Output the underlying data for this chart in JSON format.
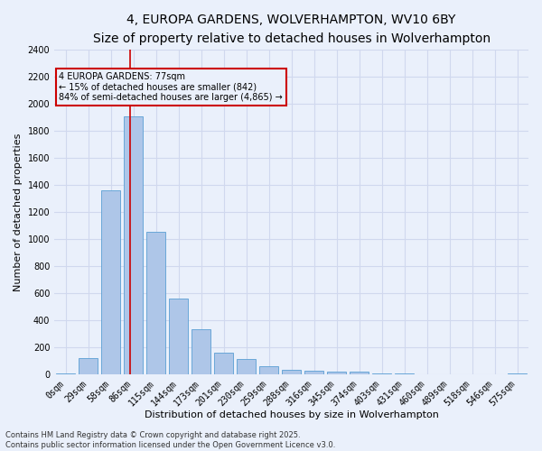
{
  "title1": "4, EUROPA GARDENS, WOLVERHAMPTON, WV10 6BY",
  "title2": "Size of property relative to detached houses in Wolverhampton",
  "xlabel": "Distribution of detached houses by size in Wolverhampton",
  "ylabel": "Number of detached properties",
  "bin_labels": [
    "0sqm",
    "29sqm",
    "58sqm",
    "86sqm",
    "115sqm",
    "144sqm",
    "173sqm",
    "201sqm",
    "230sqm",
    "259sqm",
    "288sqm",
    "316sqm",
    "345sqm",
    "374sqm",
    "403sqm",
    "431sqm",
    "460sqm",
    "489sqm",
    "518sqm",
    "546sqm",
    "575sqm"
  ],
  "bar_values": [
    10,
    120,
    1360,
    1910,
    1055,
    560,
    335,
    165,
    115,
    60,
    35,
    30,
    25,
    20,
    10,
    8,
    5,
    5,
    5,
    3,
    10
  ],
  "bar_color": "#aec6e8",
  "bar_edge_color": "#5a9fd4",
  "bg_color": "#eaf0fb",
  "grid_color": "#d0d8ee",
  "vline_x": 2.85,
  "vline_color": "#cc0000",
  "annotation_text": "4 EUROPA GARDENS: 77sqm\n← 15% of detached houses are smaller (842)\n84% of semi-detached houses are larger (4,865) →",
  "annotation_box_color": "#cc0000",
  "footnote": "Contains HM Land Registry data © Crown copyright and database right 2025.\nContains public sector information licensed under the Open Government Licence v3.0.",
  "ylim": [
    0,
    2400
  ],
  "title1_fontsize": 10,
  "title2_fontsize": 9,
  "xlabel_fontsize": 8,
  "ylabel_fontsize": 8,
  "tick_fontsize": 7,
  "footnote_fontsize": 6
}
